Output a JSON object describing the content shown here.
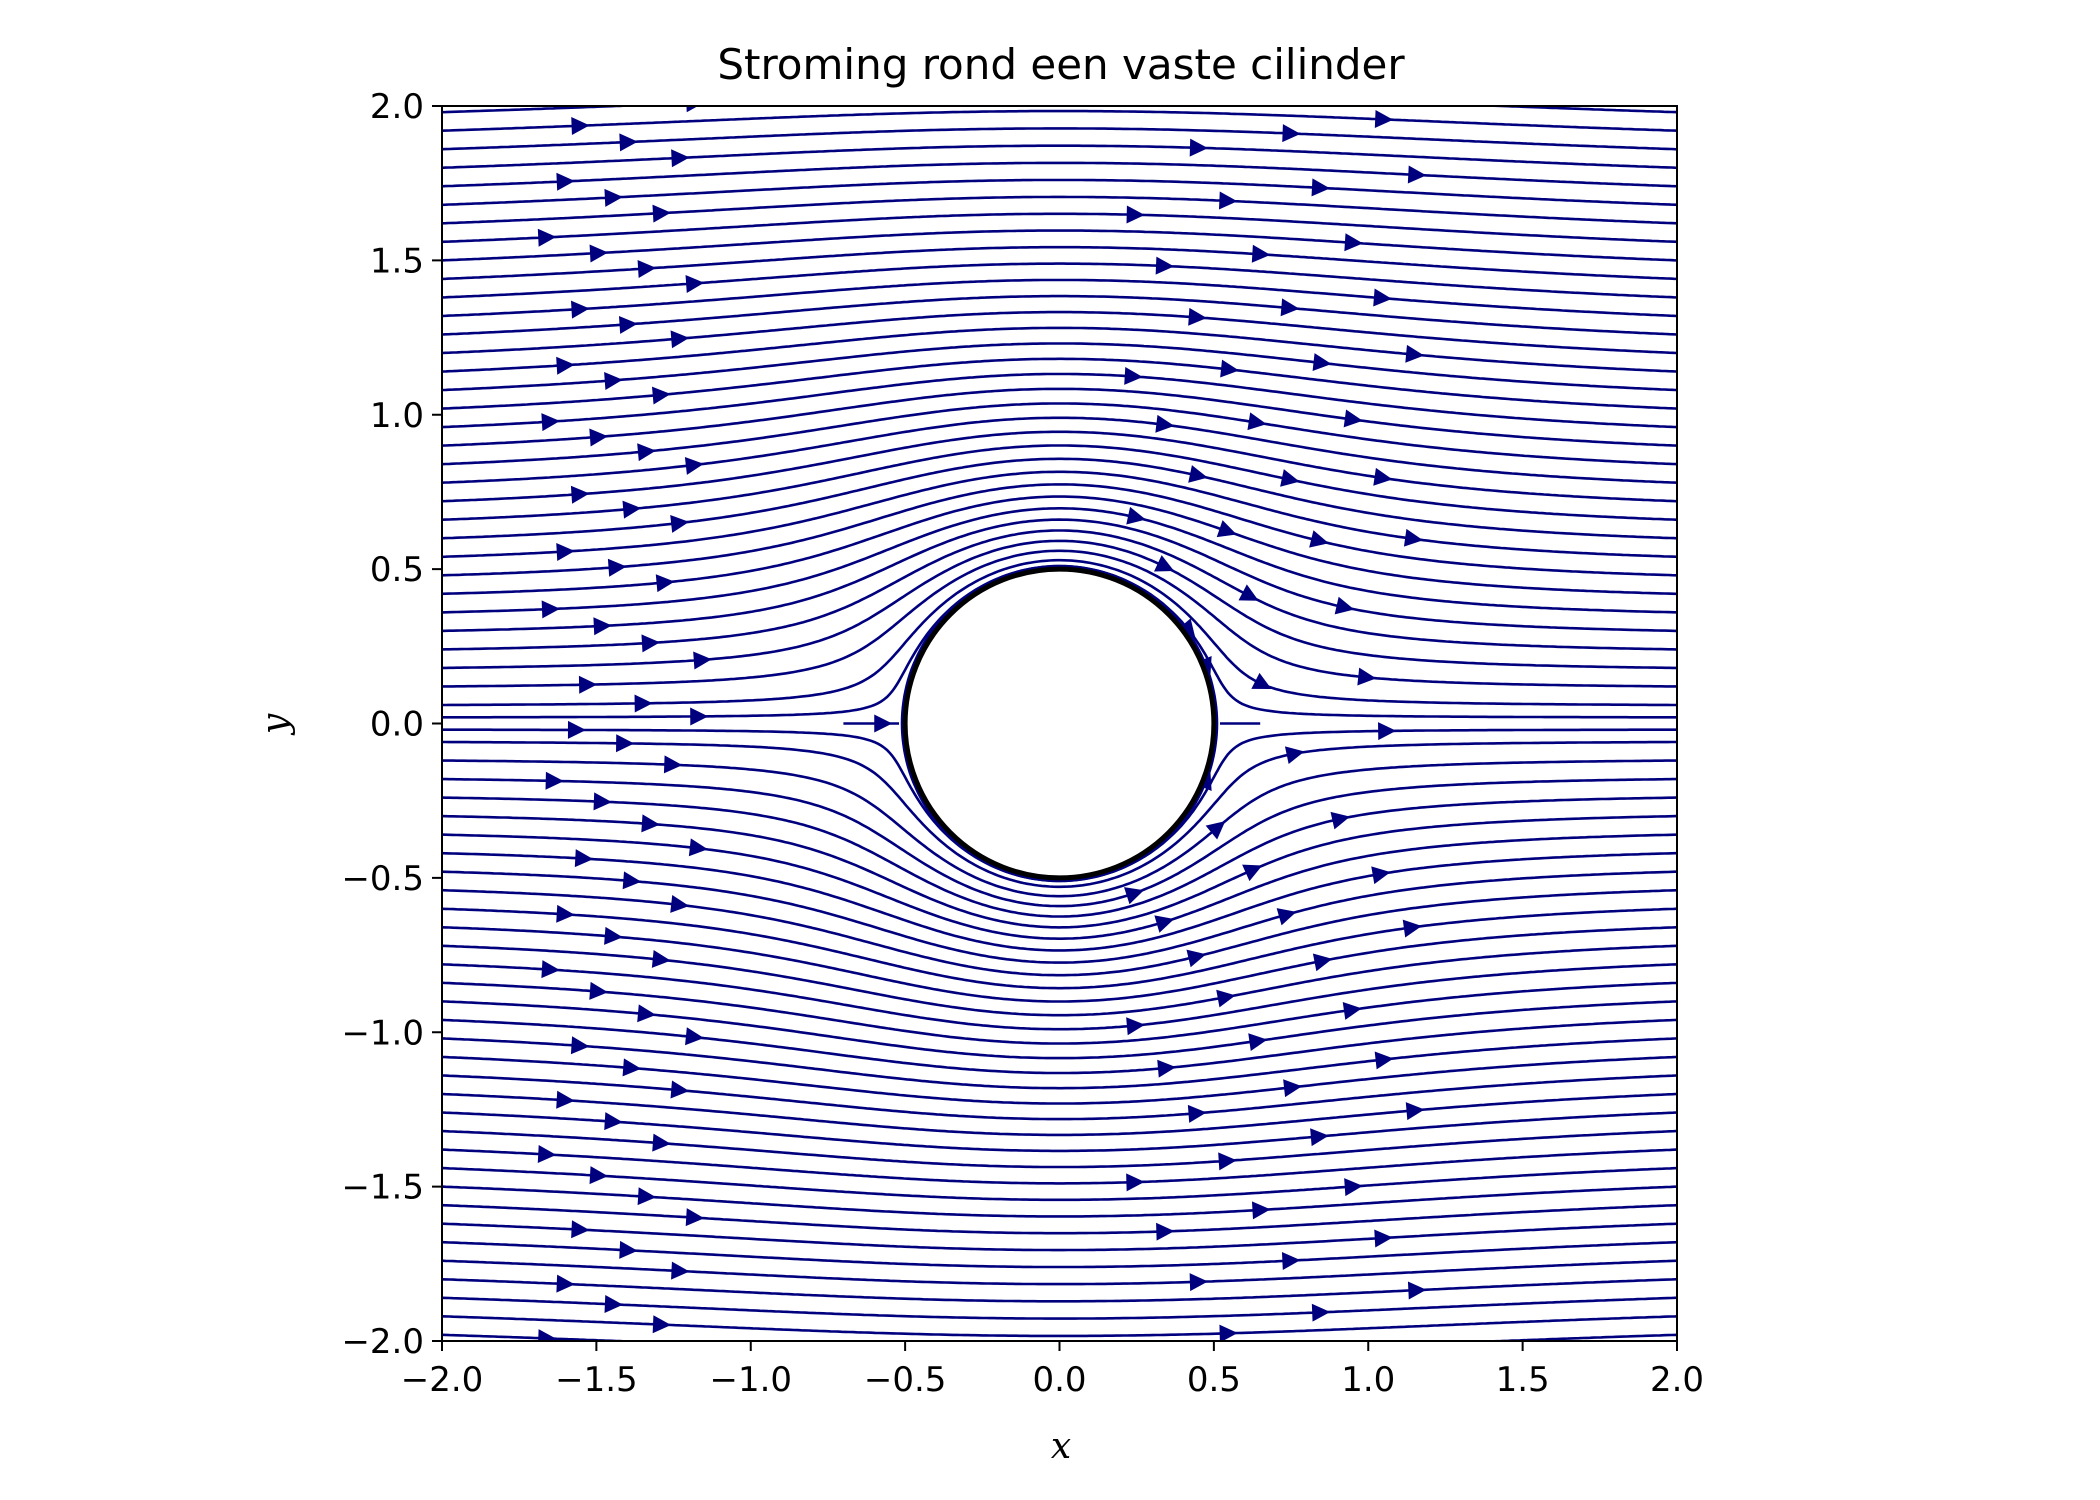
{
  "chart_data": {
    "type": "streamplot",
    "title": "Stroming rond een vaste cilinder",
    "xlabel": "x",
    "ylabel": "y",
    "xlim": [
      -2.0,
      2.0
    ],
    "ylim": [
      -2.0,
      2.0
    ],
    "xticks": [
      "−2.0",
      "−1.5",
      "−1.0",
      "−0.5",
      "0.0",
      "0.5",
      "1.0",
      "1.5",
      "2.0"
    ],
    "yticks": [
      "2.0",
      "1.5",
      "1.0",
      "0.5",
      "0.0",
      "−0.5",
      "−1.0",
      "−1.5",
      "−2.0"
    ],
    "field": {
      "description": "potential flow past a cylinder",
      "free_stream_velocity": 1.0,
      "cylinder_center": [
        0.0,
        0.0
      ],
      "cylinder_radius": 0.5
    },
    "streamline_start_x": -2.0,
    "streamline_start_y": [
      -1.98,
      -1.92,
      -1.86,
      -1.8,
      -1.74,
      -1.68,
      -1.62,
      -1.56,
      -1.5,
      -1.44,
      -1.38,
      -1.32,
      -1.26,
      -1.2,
      -1.14,
      -1.08,
      -1.02,
      -0.96,
      -0.9,
      -0.84,
      -0.78,
      -0.72,
      -0.66,
      -0.6,
      -0.54,
      -0.48,
      -0.42,
      -0.36,
      -0.3,
      -0.24,
      -0.18,
      -0.12,
      -0.06,
      -0.02,
      0.02,
      0.06,
      0.12,
      0.18,
      0.24,
      0.3,
      0.36,
      0.42,
      0.48,
      0.54,
      0.6,
      0.66,
      0.72,
      0.78,
      0.84,
      0.9,
      0.96,
      1.02,
      1.08,
      1.14,
      1.2,
      1.26,
      1.32,
      1.38,
      1.44,
      1.5,
      1.56,
      1.62,
      1.68,
      1.74,
      1.8,
      1.86,
      1.92,
      1.98
    ],
    "streamline_color": "#00007f",
    "cylinder_outline_color": "#000000"
  }
}
